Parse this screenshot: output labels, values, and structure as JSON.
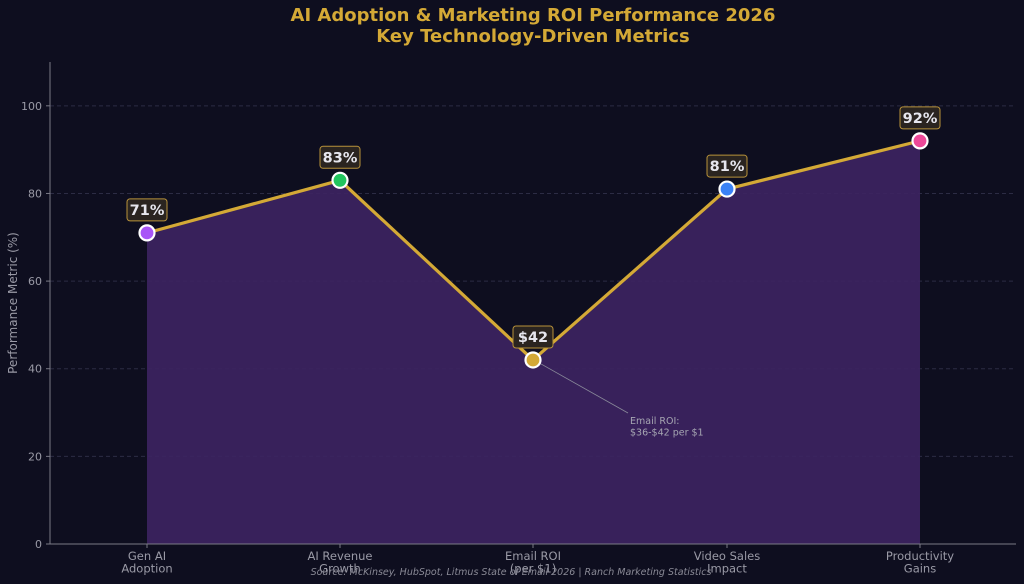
{
  "chart_data": {
    "type": "area",
    "title": "AI Adoption & Marketing ROI Performance 2026",
    "subtitle": "Key Technology-Driven Metrics",
    "xlabel": "",
    "ylabel": "Performance Metric (%)",
    "ylim": [
      0,
      110
    ],
    "yticks": [
      0,
      20,
      40,
      60,
      80,
      100
    ],
    "grid": true,
    "categories": [
      [
        "Gen AI",
        "Adoption"
      ],
      [
        "AI Revenue",
        "Growth"
      ],
      [
        "Email ROI",
        "(per $1)"
      ],
      [
        "Video Sales",
        "Impact"
      ],
      [
        "Productivity",
        "Gains"
      ]
    ],
    "values": [
      71,
      83,
      42,
      81,
      92
    ],
    "data_labels": [
      "71%",
      "83%",
      "$42",
      "81%",
      "92%"
    ],
    "marker_colors": [
      "#a855f7",
      "#22c55e",
      "#d4a936",
      "#3b82f6",
      "#ec4899"
    ],
    "line_color": "#d4a936",
    "fill_color": "#3d2462",
    "annotation": {
      "point_index": 2,
      "lines": [
        "Email ROI:",
        "$36-$42 per $1"
      ]
    },
    "source": "Source: McKinsey, HubSpot, Litmus State of Email 2026 | Ranch Marketing Statistics"
  }
}
